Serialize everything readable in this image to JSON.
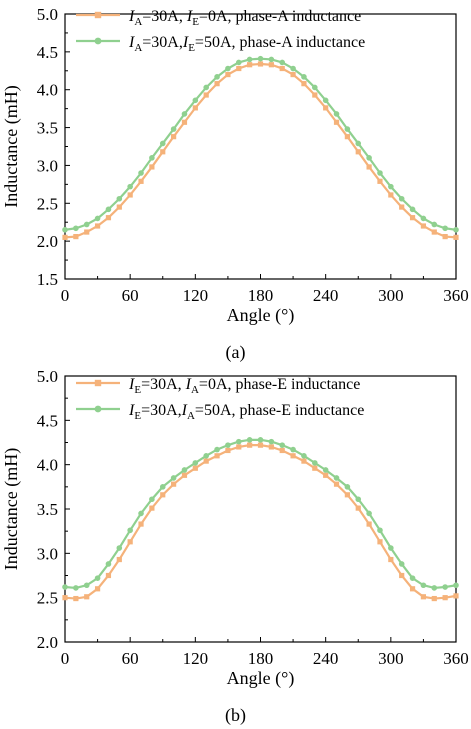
{
  "chart_data": [
    {
      "type": "line",
      "caption": "(a)",
      "xlabel": "Angle (°)",
      "ylabel": "Inductance (mH)",
      "xlim": [
        0,
        360
      ],
      "ylim": [
        1.5,
        5.0
      ],
      "xticks": [
        "0",
        "60",
        "120",
        "180",
        "240",
        "300",
        "360"
      ],
      "yticks": [
        "1.5",
        "2.0",
        "2.5",
        "3.0",
        "3.5",
        "4.0",
        "4.5",
        "5.0"
      ],
      "legend_position": "top-left",
      "x": [
        0,
        10,
        20,
        30,
        40,
        50,
        60,
        70,
        80,
        90,
        100,
        110,
        120,
        130,
        140,
        150,
        160,
        170,
        180,
        190,
        200,
        210,
        220,
        230,
        240,
        250,
        260,
        270,
        280,
        290,
        300,
        310,
        320,
        330,
        340,
        350,
        360
      ],
      "series": [
        {
          "name": "I_A=30A, I_E=0A, phase-A inductance",
          "legend": {
            "v1": "I",
            "s1": "A",
            "t1": "=30A, ",
            "v2": "I",
            "s2": "E",
            "t2": "=0A, phase-A inductance"
          },
          "color": "#f5b27a",
          "marker": "square",
          "values": [
            2.05,
            2.06,
            2.12,
            2.2,
            2.31,
            2.45,
            2.61,
            2.79,
            2.98,
            3.18,
            3.38,
            3.57,
            3.76,
            3.93,
            4.08,
            4.2,
            4.28,
            4.33,
            4.34,
            4.33,
            4.28,
            4.2,
            4.08,
            3.93,
            3.76,
            3.57,
            3.38,
            3.18,
            2.98,
            2.79,
            2.61,
            2.45,
            2.31,
            2.2,
            2.12,
            2.06,
            2.05
          ]
        },
        {
          "name": "I_A=30A, I_E=50A, phase-A inductance",
          "legend": {
            "v1": "I",
            "s1": "A",
            "t1": "=30A,",
            "v2": "I",
            "s2": "E",
            "t2": "=50A,  phase-A inductance"
          },
          "color": "#8fd08f",
          "marker": "circle",
          "values": [
            2.15,
            2.17,
            2.22,
            2.3,
            2.42,
            2.56,
            2.72,
            2.9,
            3.1,
            3.29,
            3.48,
            3.68,
            3.86,
            4.03,
            4.17,
            4.28,
            4.36,
            4.4,
            4.41,
            4.4,
            4.36,
            4.28,
            4.17,
            4.03,
            3.86,
            3.68,
            3.48,
            3.29,
            3.1,
            2.9,
            2.72,
            2.56,
            2.42,
            2.3,
            2.22,
            2.17,
            2.15
          ]
        }
      ]
    },
    {
      "type": "line",
      "caption": "(b)",
      "xlabel": "Angle (°)",
      "ylabel": "Inductance (mH)",
      "xlim": [
        0,
        360
      ],
      "ylim": [
        2.0,
        5.0
      ],
      "xticks": [
        "0",
        "60",
        "120",
        "180",
        "240",
        "300",
        "360"
      ],
      "yticks": [
        "2.0",
        "2.5",
        "3.0",
        "3.5",
        "4.0",
        "4.5",
        "5.0"
      ],
      "legend_position": "top-left",
      "x": [
        0,
        10,
        20,
        30,
        40,
        50,
        60,
        70,
        80,
        90,
        100,
        110,
        120,
        130,
        140,
        150,
        160,
        170,
        180,
        190,
        200,
        210,
        220,
        230,
        240,
        250,
        260,
        270,
        280,
        290,
        300,
        310,
        320,
        330,
        340,
        350,
        360
      ],
      "series": [
        {
          "name": "I_E=30A, I_A=0A, phase-E inductance",
          "legend": {
            "v1": "I",
            "s1": "E",
            "t1": "=30A, ",
            "v2": "I",
            "s2": "A",
            "t2": "=0A, phase-E inductance"
          },
          "color": "#f5b27a",
          "marker": "square",
          "values": [
            2.5,
            2.49,
            2.51,
            2.6,
            2.75,
            2.93,
            3.13,
            3.33,
            3.51,
            3.66,
            3.78,
            3.88,
            3.96,
            4.04,
            4.1,
            4.16,
            4.2,
            4.22,
            4.22,
            4.2,
            4.16,
            4.1,
            4.04,
            3.96,
            3.88,
            3.78,
            3.66,
            3.51,
            3.33,
            3.13,
            2.93,
            2.75,
            2.6,
            2.51,
            2.49,
            2.5,
            2.52
          ]
        },
        {
          "name": "I_E=30A, I_A=50A, phase-E inductance",
          "legend": {
            "v1": "I",
            "s1": "E",
            "t1": "=30A,",
            "v2": "I",
            "s2": "A",
            "t2": "=50A,  phase-E inductance"
          },
          "color": "#8fd08f",
          "marker": "circle",
          "values": [
            2.62,
            2.61,
            2.64,
            2.72,
            2.88,
            3.06,
            3.26,
            3.45,
            3.61,
            3.75,
            3.85,
            3.94,
            4.02,
            4.1,
            4.17,
            4.22,
            4.26,
            4.28,
            4.28,
            4.26,
            4.22,
            4.17,
            4.1,
            4.02,
            3.94,
            3.85,
            3.75,
            3.61,
            3.45,
            3.26,
            3.06,
            2.88,
            2.72,
            2.64,
            2.61,
            2.62,
            2.64
          ]
        }
      ]
    }
  ]
}
